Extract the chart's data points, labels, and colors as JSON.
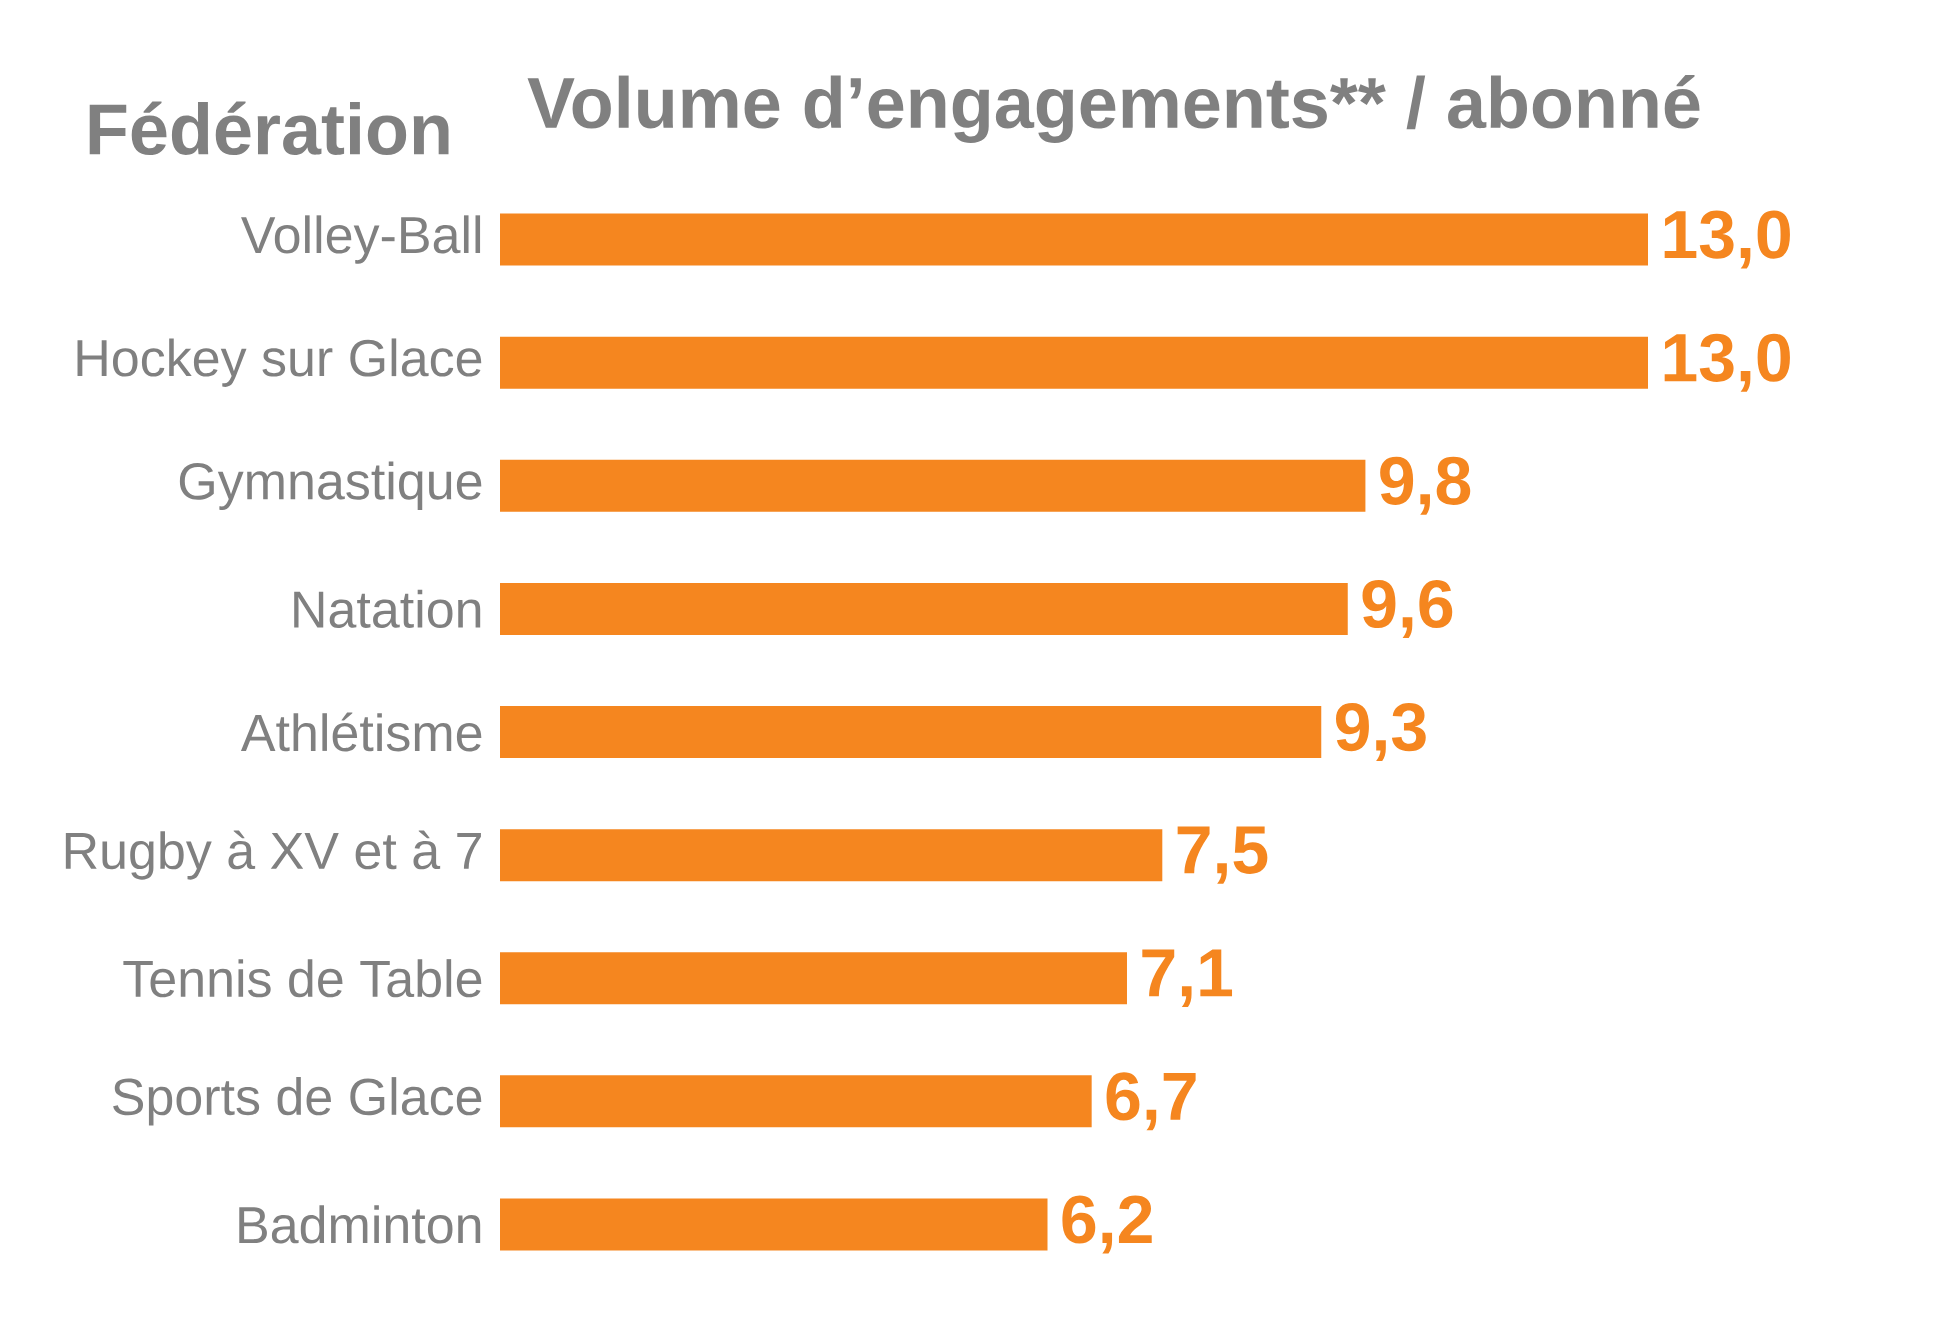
{
  "chart_data": {
    "type": "bar",
    "orientation": "horizontal",
    "title": "Volume d’engagements** / abonné",
    "ylabel": "Fédération",
    "categories": [
      "Volley-Ball",
      "Hockey sur Glace",
      "Gymnastique",
      "Natation",
      "Athlétisme",
      "Rugby à XV et à 7",
      "Tennis de Table",
      "Sports de Glace",
      "Badminton"
    ],
    "values": [
      13.0,
      13.0,
      9.8,
      9.6,
      9.3,
      7.5,
      7.1,
      6.7,
      6.2
    ],
    "value_labels": [
      "13,0",
      "13,0",
      "9,8",
      "9,6",
      "9,3",
      "7,5",
      "7,1",
      "6,7",
      "6,2"
    ],
    "color": "#f5861f"
  }
}
